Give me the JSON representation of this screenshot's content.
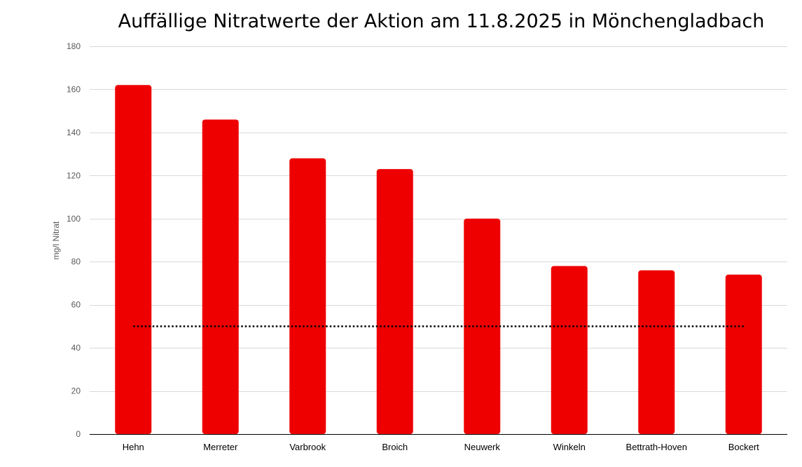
{
  "chart_data": {
    "type": "bar",
    "title": "Auffällige Nitratwerte der Aktion am 11.8.2025 in Mönchengladbach",
    "xlabel": "",
    "ylabel": "mg/l Nitrat",
    "categories": [
      "Hehn",
      "Merreter",
      "Varbrook",
      "Broich",
      "Neuwerk",
      "Winkeln",
      "Bettrath-Hoven",
      "Bockert"
    ],
    "values": [
      162,
      146,
      128,
      123,
      100,
      78,
      76,
      74
    ],
    "ylim": [
      0,
      180
    ],
    "yticks": [
      0,
      20,
      40,
      60,
      80,
      100,
      120,
      140,
      160,
      180
    ],
    "grid": true,
    "reference_line": {
      "value": 50,
      "style": "dotted"
    },
    "colors": {
      "bar": "#ee0000",
      "grid": "#d9d9d9",
      "axis": "#000000",
      "reference_line": "#000000"
    }
  }
}
